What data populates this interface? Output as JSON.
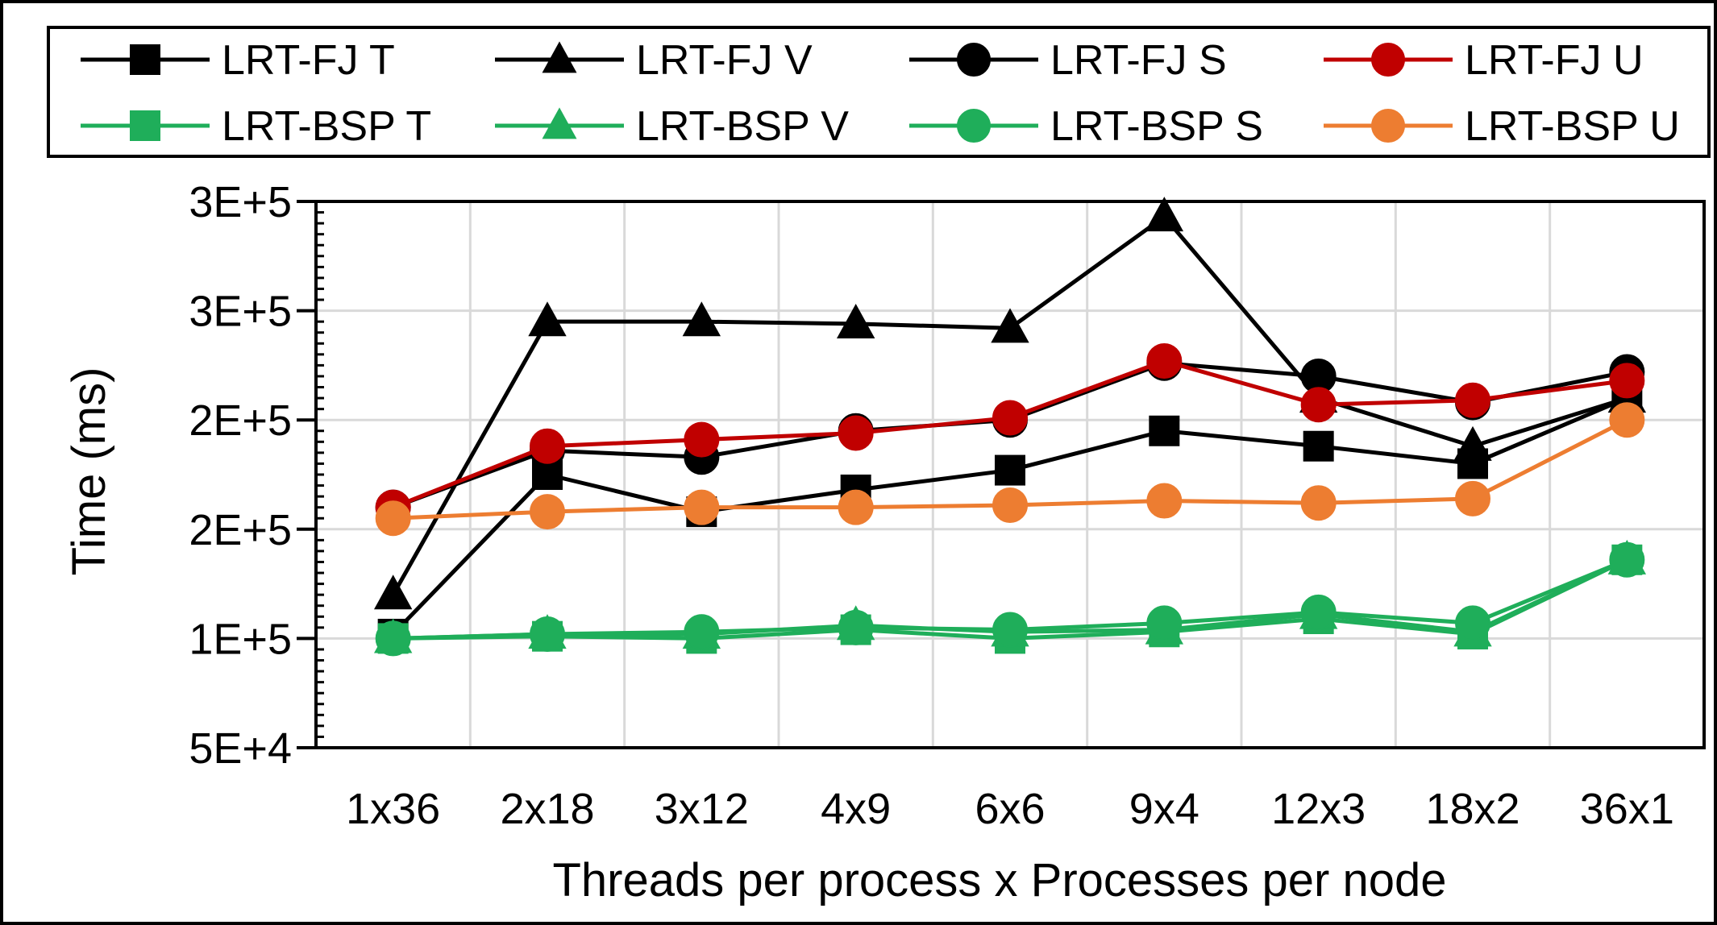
{
  "chart_data": {
    "type": "line",
    "title": "",
    "xlabel": "Threads per process x Processes per node",
    "ylabel": "Time (ms)",
    "categories": [
      "1x36",
      "2x18",
      "3x12",
      "4x9",
      "6x6",
      "9x4",
      "12x3",
      "18x2",
      "36x1"
    ],
    "y_tick_labels": [
      "5E+4",
      "1E+5",
      "2E+5",
      "2E+5",
      "3E+5",
      "3E+5"
    ],
    "ylim": [
      50000,
      300000
    ],
    "grid": true,
    "legend_position": "top",
    "series": [
      {
        "name": "LRT-FJ T",
        "marker": "square",
        "color": "#000000",
        "marker_color": "#000000",
        "values": [
          102000,
          175000,
          158000,
          168000,
          177000,
          195000,
          188000,
          180000,
          210000
        ]
      },
      {
        "name": "LRT-FJ V",
        "marker": "triangle",
        "color": "#000000",
        "marker_color": "#000000",
        "values": [
          120000,
          245000,
          245000,
          244000,
          242000,
          293000,
          210000,
          188000,
          210000
        ]
      },
      {
        "name": "LRT-FJ S",
        "marker": "circle",
        "color": "#000000",
        "marker_color": "#000000",
        "values": [
          160000,
          186000,
          183000,
          195000,
          200000,
          226000,
          220000,
          208000,
          222000
        ]
      },
      {
        "name": "LRT-FJ U",
        "marker": "circle",
        "color": "#c00000",
        "marker_color": "#c00000",
        "values": [
          160000,
          188000,
          191000,
          194000,
          201000,
          227000,
          207000,
          209000,
          218000
        ]
      },
      {
        "name": "LRT-BSP T",
        "marker": "square",
        "color": "#1fae5a",
        "marker_color": "#1fae5a",
        "values": [
          100000,
          101000,
          100000,
          104000,
          100000,
          103000,
          109000,
          102000,
          136000
        ]
      },
      {
        "name": "LRT-BSP V",
        "marker": "triangle",
        "color": "#1fae5a",
        "marker_color": "#1fae5a",
        "values": [
          100000,
          102000,
          102000,
          106000,
          103000,
          104000,
          111000,
          103000,
          136000
        ]
      },
      {
        "name": "LRT-BSP S",
        "marker": "circle",
        "color": "#1fae5a",
        "marker_color": "#1fae5a",
        "values": [
          100000,
          102000,
          103000,
          105000,
          104000,
          107000,
          112000,
          107000,
          136000
        ]
      },
      {
        "name": "LRT-BSP U",
        "marker": "circle",
        "color": "#ed7d31",
        "marker_color": "#ed7d31",
        "values": [
          155000,
          158000,
          160000,
          160000,
          161000,
          163000,
          162000,
          164000,
          200000
        ]
      }
    ]
  }
}
